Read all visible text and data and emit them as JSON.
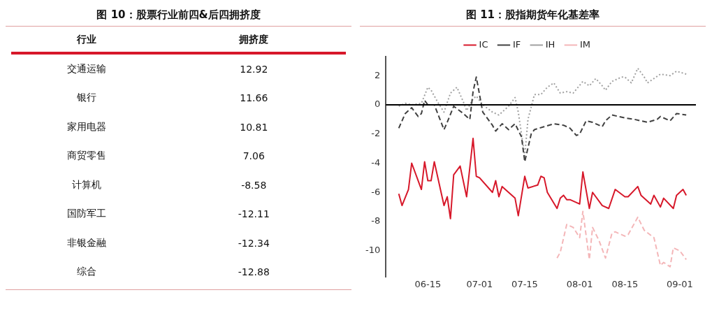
{
  "chart_data": [
    {
      "type": "other",
      "title": "图 10：股票行业前四&后四拥挤度",
      "xlabel": "行业",
      "ylabel": "拥挤度",
      "categories": [
        "交通运输",
        "银行",
        "家用电器",
        "商贸零售",
        "计算机",
        "国防军工",
        "非银金融",
        "综合"
      ],
      "values": [
        12.92,
        11.66,
        10.81,
        7.06,
        -8.58,
        -12.11,
        -12.34,
        -12.88
      ],
      "data_labels": true
    },
    {
      "type": "line",
      "title": "图 11：股指期货年化基差率",
      "xlim": [
        "--06-02",
        "--09-06"
      ],
      "xticks": [
        {
          "value": "--06-15",
          "label": "06-15"
        },
        {
          "value": "--07-01",
          "label": "07-01"
        },
        {
          "value": "--07-15",
          "label": "07-15"
        },
        {
          "value": "--08-01",
          "label": "08-01"
        },
        {
          "value": "--08-15",
          "label": "08-15"
        },
        {
          "value": "--09-01",
          "label": "09-01"
        }
      ],
      "ylim": [
        -11.8,
        3.3
      ],
      "yticks": [
        2,
        0,
        -2,
        -4,
        -6,
        -8,
        -10
      ],
      "grid": false,
      "legend": "top",
      "marker": "none",
      "ref_lines": [
        {
          "axis": "y",
          "value": 0,
          "color": "#000000"
        }
      ],
      "series": [
        {
          "name": "IC",
          "color": "#d7182a",
          "line_style": "solid",
          "x": [
            "--06-06",
            "--06-07",
            "--06-09",
            "--06-10",
            "--06-13",
            "--06-14",
            "--06-15",
            "--06-16",
            "--06-17",
            "--06-20",
            "--06-21",
            "--06-22",
            "--06-23",
            "--06-25",
            "--06-27",
            "--06-29",
            "--06-30",
            "--07-01",
            "--07-05",
            "--07-06",
            "--07-07",
            "--07-08",
            "--07-12",
            "--07-13",
            "--07-15",
            "--07-16",
            "--07-19",
            "--07-20",
            "--07-21",
            "--07-22",
            "--07-25",
            "--07-26",
            "--07-27",
            "--07-28",
            "--07-29",
            "--08-01",
            "--08-02",
            "--08-04",
            "--08-05",
            "--08-08",
            "--08-10",
            "--08-12",
            "--08-15",
            "--08-16",
            "--08-19",
            "--08-20",
            "--08-23",
            "--08-24",
            "--08-26",
            "--08-27",
            "--08-30",
            "--08-31",
            "--09-02",
            "--09-03"
          ],
          "values": [
            -6.1,
            -6.9,
            -5.8,
            -4.0,
            -5.8,
            -3.9,
            -5.2,
            -5.2,
            -3.9,
            -6.9,
            -6.3,
            -7.8,
            -4.8,
            -4.2,
            -6.3,
            -2.3,
            -4.9,
            -5.0,
            -6.0,
            -5.2,
            -6.3,
            -5.6,
            -6.4,
            -7.6,
            -4.9,
            -5.7,
            -5.5,
            -4.9,
            -5.0,
            -6.0,
            -7.1,
            -6.4,
            -6.2,
            -6.5,
            -6.5,
            -6.8,
            -4.6,
            -7.1,
            -6.0,
            -6.9,
            -7.1,
            -5.8,
            -6.3,
            -6.3,
            -5.6,
            -6.2,
            -6.8,
            -6.2,
            -7.0,
            -6.4,
            -7.1,
            -6.2,
            -5.8,
            -6.2
          ]
        },
        {
          "name": "IF",
          "color": "#404040",
          "line_style": "dashed",
          "x": [
            "--06-06",
            "--06-08",
            "--06-10",
            "--06-12",
            "--06-13",
            "--06-14",
            "--06-15",
            "--06-17",
            "--06-20",
            "--06-21",
            "--06-23",
            "--06-26",
            "--06-28",
            "--06-29",
            "--06-30",
            "--07-02",
            "--07-05",
            "--07-06",
            "--07-08",
            "--07-10",
            "--07-12",
            "--07-14",
            "--07-15",
            "--07-17",
            "--07-18",
            "--07-21",
            "--07-24",
            "--07-27",
            "--07-29",
            "--07-31",
            "--08-01",
            "--08-03",
            "--08-05",
            "--08-08",
            "--08-09",
            "--08-11",
            "--08-15",
            "--08-18",
            "--08-22",
            "--08-25",
            "--08-26",
            "--08-29",
            "--08-31",
            "--09-03"
          ],
          "values": [
            -1.6,
            -0.6,
            -0.2,
            -0.8,
            -0.6,
            0.3,
            0.0,
            0.0,
            -1.7,
            -1.2,
            -0.1,
            -0.6,
            -1.0,
            0.9,
            1.9,
            -0.5,
            -1.4,
            -1.8,
            -1.3,
            -1.7,
            -1.3,
            -2.2,
            -3.9,
            -2.0,
            -1.7,
            -1.5,
            -1.3,
            -1.4,
            -1.6,
            -2.1,
            -2.0,
            -1.1,
            -1.2,
            -1.5,
            -1.1,
            -0.7,
            -0.9,
            -1.0,
            -1.2,
            -1.0,
            -0.8,
            -1.1,
            -0.6,
            -0.7
          ]
        },
        {
          "name": "IH",
          "color": "#a0a0a0",
          "line_style": "dotted",
          "x": [
            "--06-06",
            "--06-08",
            "--06-10",
            "--06-13",
            "--06-15",
            "--06-16",
            "--06-18",
            "--06-20",
            "--06-22",
            "--06-24",
            "--06-26",
            "--06-27",
            "--06-29",
            "--06-30",
            "--07-02",
            "--07-05",
            "--07-07",
            "--07-10",
            "--07-12",
            "--07-13",
            "--07-15",
            "--07-16",
            "--07-18",
            "--07-20",
            "--07-22",
            "--07-24",
            "--07-26",
            "--07-28",
            "--07-30",
            "--08-02",
            "--08-04",
            "--08-06",
            "--08-08",
            "--08-09",
            "--08-11",
            "--08-14",
            "--08-15",
            "--08-17",
            "--08-19",
            "--08-21",
            "--08-22",
            "--08-26",
            "--08-29",
            "--08-31",
            "--09-03"
          ],
          "values": [
            -0.1,
            0.1,
            0.0,
            0.1,
            1.2,
            1.0,
            0.2,
            -0.5,
            0.8,
            1.2,
            0.2,
            -0.4,
            0.4,
            0.6,
            0.0,
            -0.5,
            -0.7,
            -0.1,
            0.5,
            -0.5,
            -3.5,
            -1.0,
            0.7,
            0.7,
            1.2,
            1.5,
            0.8,
            0.9,
            0.8,
            1.6,
            1.3,
            1.8,
            1.3,
            1.0,
            1.6,
            1.9,
            1.9,
            1.5,
            2.5,
            1.9,
            1.5,
            2.1,
            2.0,
            2.3,
            2.1
          ]
        },
        {
          "name": "IM",
          "color": "#f4b6b8",
          "line_style": "dashed",
          "x": [
            "--07-25",
            "--07-26",
            "--07-28",
            "--07-30",
            "--08-01",
            "--08-02",
            "--08-04",
            "--08-05",
            "--08-07",
            "--08-09",
            "--08-11",
            "--08-12",
            "--08-15",
            "--08-16",
            "--08-19",
            "--08-21",
            "--08-24",
            "--08-26",
            "--08-27",
            "--08-29",
            "--08-30",
            "--09-01",
            "--09-03"
          ],
          "values": [
            -10.5,
            -10.1,
            -8.2,
            -8.4,
            -9.1,
            -7.3,
            -10.6,
            -8.4,
            -9.3,
            -10.5,
            -8.8,
            -8.7,
            -9.0,
            -8.9,
            -7.7,
            -8.6,
            -9.1,
            -11.0,
            -10.8,
            -11.1,
            -9.8,
            -10.0,
            -10.6
          ]
        }
      ]
    }
  ]
}
